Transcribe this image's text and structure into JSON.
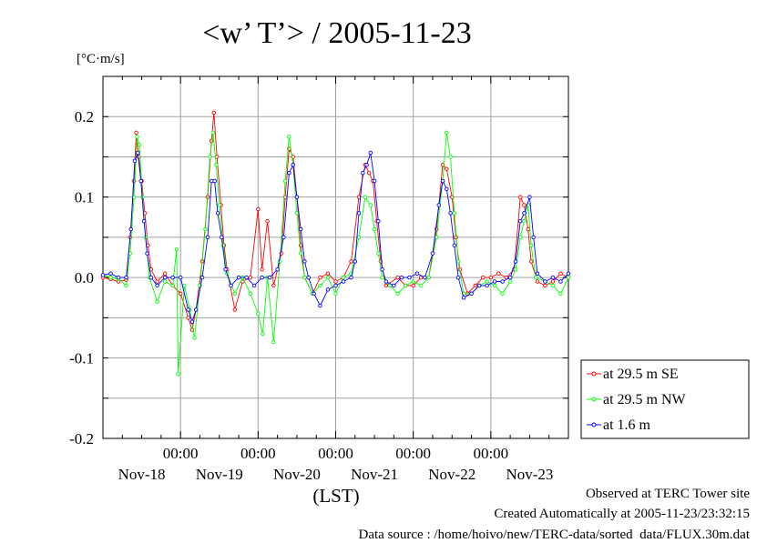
{
  "chart_data": {
    "type": "line",
    "title": "<w’ T’> / 2005-11-23",
    "unit_label": "[°C·m/s]",
    "xlabel": "(LST)",
    "ylim": [
      -0.2,
      0.25
    ],
    "xlim": [
      0,
      6
    ],
    "yticks": [
      -0.2,
      -0.1,
      0.0,
      0.1,
      0.2
    ],
    "ytick_labels": [
      "-0.2",
      "-0.1",
      "0.0",
      "0.1",
      "0.2"
    ],
    "xticks": [
      1,
      2,
      3,
      4,
      5
    ],
    "xtick_labels": [
      "00:00",
      "00:00",
      "00:00",
      "00:00",
      "00:00"
    ],
    "day_labels": [
      "Nov-18",
      "Nov-19",
      "Nov-20",
      "Nov-21",
      "Nov-22",
      "Nov-23"
    ],
    "grid": true,
    "legend_position": "right, lower",
    "series": [
      {
        "name": "at 29.5 m SE",
        "color": "#ff0000",
        "points": [
          [
            0.0,
            0.0
          ],
          [
            0.1,
            -0.002
          ],
          [
            0.2,
            -0.005
          ],
          [
            0.3,
            -0.003
          ],
          [
            0.35,
            0.05
          ],
          [
            0.4,
            0.12
          ],
          [
            0.43,
            0.18
          ],
          [
            0.46,
            0.15
          ],
          [
            0.5,
            0.12
          ],
          [
            0.54,
            0.08
          ],
          [
            0.58,
            0.04
          ],
          [
            0.62,
            0.01
          ],
          [
            0.7,
            -0.005
          ],
          [
            0.8,
            0.005
          ],
          [
            0.9,
            -0.01
          ],
          [
            1.0,
            -0.02
          ],
          [
            1.1,
            -0.05
          ],
          [
            1.15,
            -0.065
          ],
          [
            1.2,
            -0.04
          ],
          [
            1.28,
            0.02
          ],
          [
            1.35,
            0.1
          ],
          [
            1.4,
            0.17
          ],
          [
            1.43,
            0.205
          ],
          [
            1.47,
            0.15
          ],
          [
            1.52,
            0.09
          ],
          [
            1.56,
            0.04
          ],
          [
            1.6,
            0.01
          ],
          [
            1.7,
            -0.04
          ],
          [
            1.8,
            -0.005
          ],
          [
            1.9,
            0.0
          ],
          [
            2.0,
            0.085
          ],
          [
            2.05,
            0.01
          ],
          [
            2.12,
            0.07
          ],
          [
            2.2,
            -0.01
          ],
          [
            2.3,
            0.03
          ],
          [
            2.35,
            0.1
          ],
          [
            2.4,
            0.16
          ],
          [
            2.45,
            0.15
          ],
          [
            2.5,
            0.1
          ],
          [
            2.55,
            0.04
          ],
          [
            2.6,
            0.0
          ],
          [
            2.7,
            -0.02
          ],
          [
            2.8,
            0.0
          ],
          [
            2.9,
            0.005
          ],
          [
            3.0,
            -0.005
          ],
          [
            3.1,
            0.0
          ],
          [
            3.2,
            0.02
          ],
          [
            3.3,
            0.1
          ],
          [
            3.38,
            0.14
          ],
          [
            3.43,
            0.13
          ],
          [
            3.48,
            0.12
          ],
          [
            3.53,
            0.07
          ],
          [
            3.58,
            0.02
          ],
          [
            3.65,
            -0.01
          ],
          [
            3.8,
            0.0
          ],
          [
            3.9,
            -0.01
          ],
          [
            4.0,
            -0.01
          ],
          [
            4.1,
            0.0
          ],
          [
            4.2,
            0.0
          ],
          [
            4.3,
            0.06
          ],
          [
            4.38,
            0.14
          ],
          [
            4.43,
            0.135
          ],
          [
            4.5,
            0.1
          ],
          [
            4.55,
            0.05
          ],
          [
            4.6,
            0.01
          ],
          [
            4.7,
            -0.02
          ],
          [
            4.8,
            -0.01
          ],
          [
            4.9,
            0.0
          ],
          [
            5.0,
            0.0
          ],
          [
            5.1,
            0.005
          ],
          [
            5.2,
            0.0
          ],
          [
            5.3,
            0.01
          ],
          [
            5.38,
            0.1
          ],
          [
            5.43,
            0.09
          ],
          [
            5.48,
            0.06
          ],
          [
            5.52,
            0.02
          ],
          [
            5.6,
            -0.005
          ],
          [
            5.7,
            -0.01
          ],
          [
            5.8,
            -0.005
          ],
          [
            5.9,
            0.005
          ],
          [
            6.0,
            0.0
          ]
        ]
      },
      {
        "name": "at 29.5 m NW",
        "color": "#00ff00",
        "points": [
          [
            0.0,
            0.003
          ],
          [
            0.1,
            0.0
          ],
          [
            0.2,
            -0.002
          ],
          [
            0.3,
            -0.01
          ],
          [
            0.35,
            0.03
          ],
          [
            0.4,
            0.1
          ],
          [
            0.44,
            0.175
          ],
          [
            0.47,
            0.165
          ],
          [
            0.51,
            0.1
          ],
          [
            0.55,
            0.05
          ],
          [
            0.6,
            0.0
          ],
          [
            0.7,
            -0.03
          ],
          [
            0.8,
            -0.005
          ],
          [
            0.9,
            -0.01
          ],
          [
            0.95,
            0.035
          ],
          [
            0.97,
            -0.12
          ],
          [
            1.05,
            -0.01
          ],
          [
            1.12,
            -0.04
          ],
          [
            1.18,
            -0.075
          ],
          [
            1.25,
            -0.01
          ],
          [
            1.32,
            0.06
          ],
          [
            1.38,
            0.15
          ],
          [
            1.42,
            0.18
          ],
          [
            1.46,
            0.14
          ],
          [
            1.5,
            0.09
          ],
          [
            1.55,
            0.04
          ],
          [
            1.6,
            0.005
          ],
          [
            1.7,
            -0.02
          ],
          [
            1.8,
            0.0
          ],
          [
            1.9,
            -0.02
          ],
          [
            2.0,
            -0.045
          ],
          [
            2.06,
            -0.07
          ],
          [
            2.12,
            0.0
          ],
          [
            2.2,
            -0.08
          ],
          [
            2.28,
            0.02
          ],
          [
            2.35,
            0.12
          ],
          [
            2.4,
            0.175
          ],
          [
            2.45,
            0.14
          ],
          [
            2.5,
            0.08
          ],
          [
            2.55,
            0.03
          ],
          [
            2.6,
            0.0
          ],
          [
            2.7,
            -0.02
          ],
          [
            2.8,
            -0.01
          ],
          [
            2.9,
            0.0
          ],
          [
            3.0,
            -0.02
          ],
          [
            3.1,
            0.0
          ],
          [
            3.2,
            0.005
          ],
          [
            3.3,
            0.05
          ],
          [
            3.38,
            0.1
          ],
          [
            3.45,
            0.09
          ],
          [
            3.5,
            0.06
          ],
          [
            3.55,
            0.03
          ],
          [
            3.6,
            0.0
          ],
          [
            3.7,
            -0.01
          ],
          [
            3.8,
            -0.02
          ],
          [
            3.9,
            -0.01
          ],
          [
            4.0,
            -0.005
          ],
          [
            4.1,
            -0.01
          ],
          [
            4.2,
            0.0
          ],
          [
            4.3,
            0.05
          ],
          [
            4.38,
            0.12
          ],
          [
            4.43,
            0.18
          ],
          [
            4.48,
            0.15
          ],
          [
            4.53,
            0.08
          ],
          [
            4.58,
            0.02
          ],
          [
            4.65,
            -0.02
          ],
          [
            4.75,
            -0.02
          ],
          [
            4.85,
            -0.01
          ],
          [
            4.95,
            -0.005
          ],
          [
            5.05,
            -0.01
          ],
          [
            5.15,
            -0.02
          ],
          [
            5.25,
            -0.005
          ],
          [
            5.32,
            0.01
          ],
          [
            5.38,
            0.05
          ],
          [
            5.43,
            0.07
          ],
          [
            5.48,
            0.09
          ],
          [
            5.52,
            0.04
          ],
          [
            5.58,
            0.0
          ],
          [
            5.7,
            -0.005
          ],
          [
            5.8,
            -0.01
          ],
          [
            5.9,
            -0.02
          ],
          [
            6.0,
            0.0
          ]
        ]
      },
      {
        "name": "at 1.6 m",
        "color": "#0000ff",
        "points": [
          [
            0.0,
            0.003
          ],
          [
            0.1,
            0.005
          ],
          [
            0.2,
            0.0
          ],
          [
            0.3,
            0.0
          ],
          [
            0.36,
            0.06
          ],
          [
            0.41,
            0.145
          ],
          [
            0.45,
            0.155
          ],
          [
            0.49,
            0.12
          ],
          [
            0.53,
            0.07
          ],
          [
            0.57,
            0.03
          ],
          [
            0.62,
            0.0
          ],
          [
            0.7,
            -0.01
          ],
          [
            0.8,
            0.0
          ],
          [
            0.9,
            0.0
          ],
          [
            1.0,
            0.0
          ],
          [
            1.1,
            -0.04
          ],
          [
            1.15,
            -0.055
          ],
          [
            1.2,
            -0.04
          ],
          [
            1.28,
            0.0
          ],
          [
            1.35,
            0.05
          ],
          [
            1.4,
            0.12
          ],
          [
            1.44,
            0.12
          ],
          [
            1.48,
            0.08
          ],
          [
            1.53,
            0.05
          ],
          [
            1.58,
            0.01
          ],
          [
            1.65,
            -0.01
          ],
          [
            1.75,
            0.0
          ],
          [
            1.85,
            0.0
          ],
          [
            1.95,
            -0.01
          ],
          [
            2.05,
            0.0
          ],
          [
            2.15,
            0.0
          ],
          [
            2.25,
            0.01
          ],
          [
            2.33,
            0.05
          ],
          [
            2.4,
            0.13
          ],
          [
            2.45,
            0.14
          ],
          [
            2.5,
            0.1
          ],
          [
            2.55,
            0.06
          ],
          [
            2.6,
            0.02
          ],
          [
            2.65,
            0.0
          ],
          [
            2.72,
            -0.02
          ],
          [
            2.8,
            -0.035
          ],
          [
            2.9,
            -0.015
          ],
          [
            3.0,
            -0.01
          ],
          [
            3.1,
            -0.005
          ],
          [
            3.2,
            0.0
          ],
          [
            3.25,
            0.02
          ],
          [
            3.3,
            0.08
          ],
          [
            3.35,
            0.13
          ],
          [
            3.4,
            0.14
          ],
          [
            3.45,
            0.155
          ],
          [
            3.5,
            0.12
          ],
          [
            3.55,
            0.07
          ],
          [
            3.6,
            0.01
          ],
          [
            3.65,
            -0.005
          ],
          [
            3.75,
            -0.01
          ],
          [
            3.85,
            0.0
          ],
          [
            3.95,
            0.0
          ],
          [
            4.05,
            0.005
          ],
          [
            4.15,
            0.0
          ],
          [
            4.25,
            0.03
          ],
          [
            4.33,
            0.09
          ],
          [
            4.38,
            0.12
          ],
          [
            4.43,
            0.11
          ],
          [
            4.48,
            0.08
          ],
          [
            4.53,
            0.04
          ],
          [
            4.58,
            0.0
          ],
          [
            4.65,
            -0.025
          ],
          [
            4.75,
            -0.02
          ],
          [
            4.85,
            -0.01
          ],
          [
            4.95,
            -0.01
          ],
          [
            5.05,
            -0.005
          ],
          [
            5.15,
            -0.005
          ],
          [
            5.25,
            0.0
          ],
          [
            5.32,
            0.02
          ],
          [
            5.38,
            0.07
          ],
          [
            5.43,
            0.08
          ],
          [
            5.5,
            0.1
          ],
          [
            5.55,
            0.05
          ],
          [
            5.6,
            0.005
          ],
          [
            5.7,
            -0.005
          ],
          [
            5.8,
            0.0
          ],
          [
            5.9,
            -0.005
          ],
          [
            6.0,
            0.005
          ]
        ]
      }
    ]
  },
  "footer": {
    "line1": "Observed at TERC Tower site",
    "line2": "Created Automatically at 2005-11-23/23:32:15",
    "line3": "Data source : /home/hoivo/new/TERC-data/sorted  data/FLUX.30m.dat"
  }
}
